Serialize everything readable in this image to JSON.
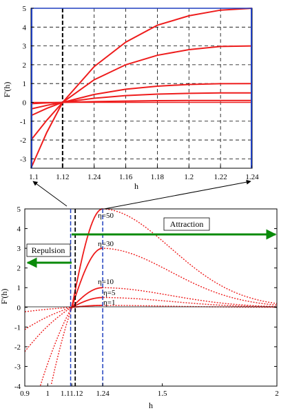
{
  "chart_data": [
    {
      "type": "line",
      "panel": "top",
      "xlabel": "h",
      "ylabel": "F'(h)",
      "xlim": [
        1.1,
        1.24
      ],
      "ylim": [
        -3.5,
        5
      ],
      "x_ticks": [
        "1.1",
        "1.12",
        "1.24",
        "1.16",
        "1.18",
        "1.2",
        "1.22",
        "1.24"
      ],
      "y_ticks": [
        -3,
        -2,
        -1,
        0,
        1,
        2,
        3,
        4,
        5
      ],
      "grid": "dashed",
      "series": [
        {
          "eta": 50,
          "x": [
            1.1,
            1.11,
            1.12,
            1.14,
            1.16,
            1.18,
            1.2,
            1.22,
            1.24
          ],
          "values": [
            -3.5,
            -1.6,
            0,
            1.9,
            3.2,
            4.1,
            4.6,
            4.9,
            5.0
          ]
        },
        {
          "eta": 30,
          "x": [
            1.1,
            1.11,
            1.12,
            1.14,
            1.16,
            1.18,
            1.2,
            1.22,
            1.24
          ],
          "values": [
            -2.0,
            -0.95,
            0,
            1.2,
            2.0,
            2.5,
            2.8,
            2.97,
            3.0
          ]
        },
        {
          "eta": 10,
          "x": [
            1.1,
            1.11,
            1.12,
            1.14,
            1.16,
            1.18,
            1.2,
            1.22,
            1.24
          ],
          "values": [
            -0.7,
            -0.32,
            0,
            0.42,
            0.7,
            0.86,
            0.95,
            0.99,
            1.0
          ]
        },
        {
          "eta": 5,
          "x": [
            1.1,
            1.11,
            1.12,
            1.14,
            1.16,
            1.18,
            1.2,
            1.22,
            1.24
          ],
          "values": [
            -0.35,
            -0.16,
            0,
            0.22,
            0.36,
            0.44,
            0.48,
            0.5,
            0.5
          ]
        },
        {
          "eta": 1,
          "x": [
            1.1,
            1.11,
            1.12,
            1.14,
            1.16,
            1.18,
            1.2,
            1.22,
            1.24
          ],
          "values": [
            -0.07,
            -0.03,
            0,
            0.04,
            0.07,
            0.09,
            0.1,
            0.1,
            0.1
          ]
        }
      ],
      "vlines": [
        1.12
      ],
      "color": "#ee1c1c"
    },
    {
      "type": "line",
      "panel": "bottom",
      "xlabel": "h",
      "ylabel": "F'(h)",
      "xlim": [
        0.9,
        2
      ],
      "ylim": [
        -4,
        5
      ],
      "x_ticks": [
        {
          "v": 0.9,
          "label": "0.9"
        },
        {
          "v": 1.0,
          "label": "1"
        },
        {
          "v": 1.105,
          "label": "1.11.12"
        },
        {
          "v": 1.24,
          "label": "1.24"
        },
        {
          "v": 1.5,
          "label": "1.5"
        },
        {
          "v": 2.0,
          "label": "2"
        }
      ],
      "y_ticks": [
        -4,
        -3,
        -2,
        -1,
        0,
        1,
        2,
        3,
        4,
        5
      ],
      "series": [
        {
          "label": "η=50",
          "peak": 5.0
        },
        {
          "label": "η=30",
          "peak": 3.0
        },
        {
          "label": "η=10",
          "peak": 1.0
        },
        {
          "label": "η=5",
          "peak": 0.5
        },
        {
          "label": "η=1",
          "peak": 0.1
        }
      ],
      "vlines_blue": [
        1.1,
        1.24
      ],
      "vlines_black": [
        1.12
      ],
      "color": "#ee1c1c",
      "annotations": {
        "repulsion": "Repulsion",
        "attraction": "Attraction"
      }
    }
  ]
}
